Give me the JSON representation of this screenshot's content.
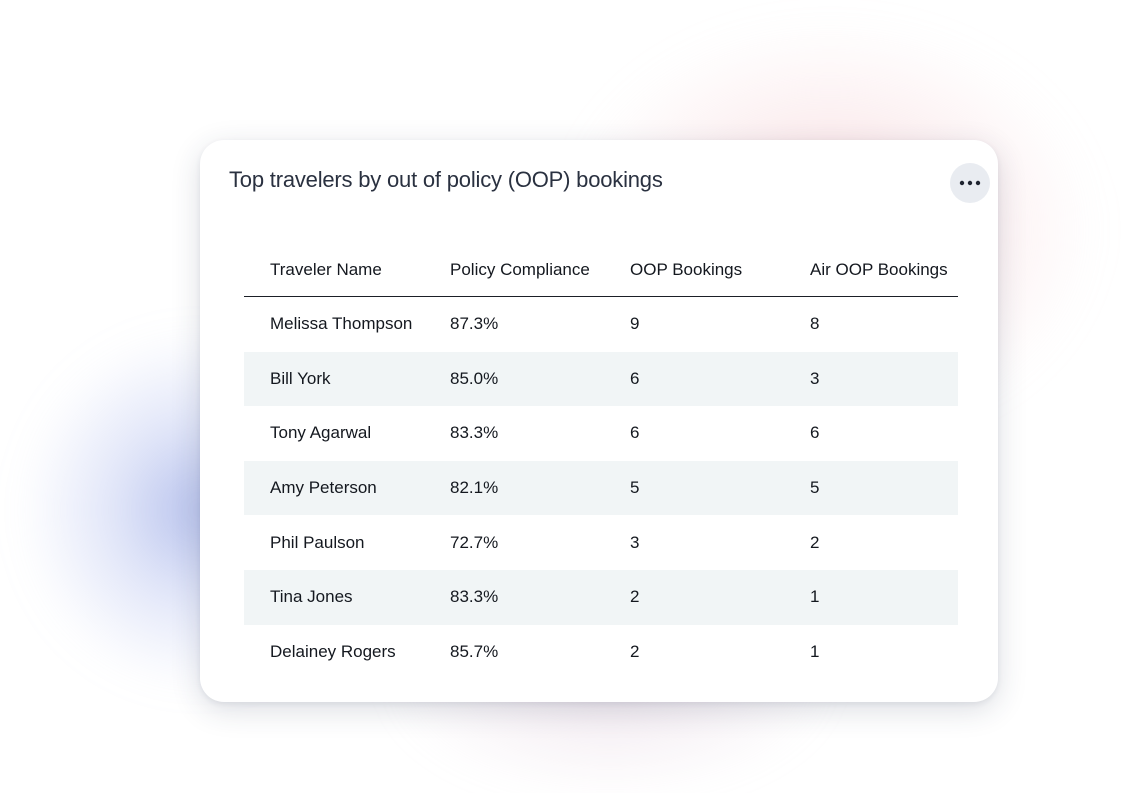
{
  "widget": {
    "title": "Top travelers by out of policy (OOP) bookings",
    "menu_icon": "more-horizontal-icon"
  },
  "table": {
    "columns": [
      "Traveler Name",
      "Policy Compliance",
      "OOP Bookings",
      "Air OOP Bookings"
    ],
    "rows": [
      [
        "Melissa Thompson",
        "87.3%",
        "9",
        "8"
      ],
      [
        "Bill York",
        "85.0%",
        "6",
        "3"
      ],
      [
        "Tony Agarwal",
        "83.3%",
        "6",
        "6"
      ],
      [
        "Amy Peterson",
        "82.1%",
        "5",
        "5"
      ],
      [
        "Phil Paulson",
        "72.7%",
        "3",
        "2"
      ],
      [
        "Tina Jones",
        "83.3%",
        "2",
        "1"
      ],
      [
        "Delainey Rogers",
        "85.7%",
        "2",
        "1"
      ]
    ]
  },
  "colors": {
    "row_alt_background": "#f1f5f6",
    "title_text": "#2a3140",
    "menu_button_background": "#e9ecf1"
  }
}
